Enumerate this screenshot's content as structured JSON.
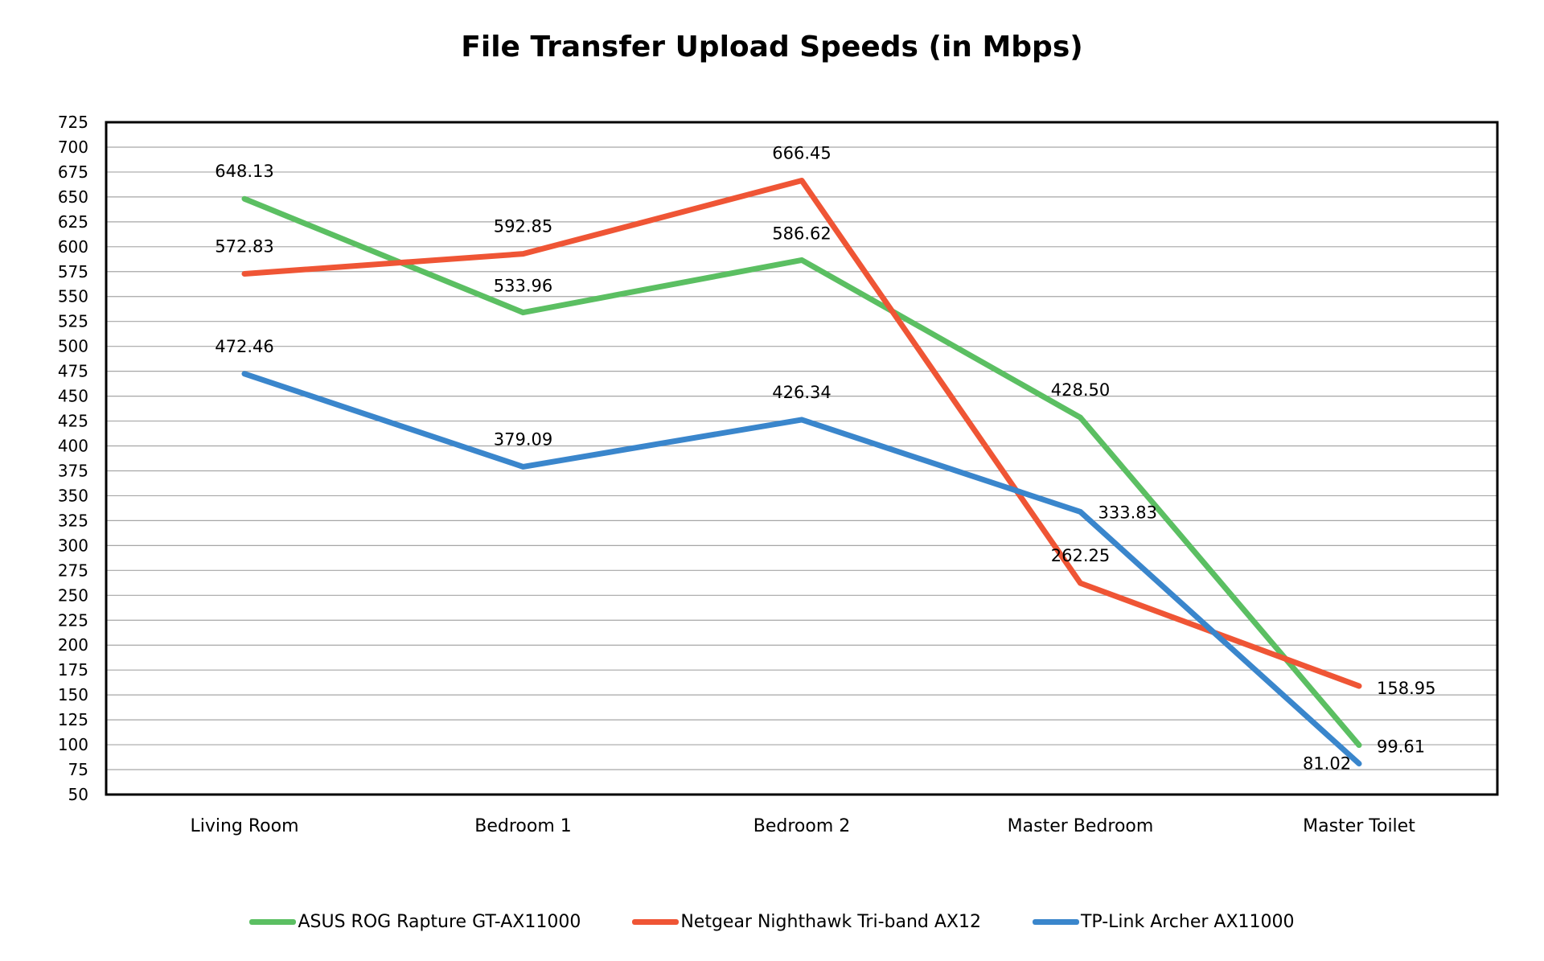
{
  "chart_data": {
    "type": "line",
    "title": "File Transfer Upload Speeds (in Mbps)",
    "xlabel": "",
    "ylabel": "",
    "categories": [
      "Living Room",
      "Bedroom 1",
      "Bedroom 2",
      "Master Bedroom",
      "Master Toilet"
    ],
    "ylim": [
      50,
      725
    ],
    "yticks": [
      50,
      75,
      100,
      125,
      150,
      175,
      200,
      225,
      250,
      275,
      300,
      325,
      350,
      375,
      400,
      425,
      450,
      475,
      500,
      525,
      550,
      575,
      600,
      625,
      650,
      675,
      700,
      725
    ],
    "grid": true,
    "legend_position": "bottom",
    "series": [
      {
        "name": "ASUS ROG Rapture GT-AX11000",
        "color": "#5BBF62",
        "values": [
          648.13,
          533.96,
          586.62,
          428.5,
          99.61
        ],
        "labels": [
          "648.13",
          "533.96",
          "586.62",
          "428.50",
          "99.61"
        ]
      },
      {
        "name": "Netgear Nighthawk Tri-band AX12",
        "color": "#EF5535",
        "values": [
          572.83,
          592.85,
          666.45,
          262.25,
          158.95
        ],
        "labels": [
          "572.83",
          "592.85",
          "666.45",
          "262.25",
          "158.95"
        ]
      },
      {
        "name": "TP-Link Archer AX11000",
        "color": "#3A86CC",
        "values": [
          472.46,
          379.09,
          426.34,
          333.83,
          81.02
        ],
        "labels": [
          "472.46",
          "379.09",
          "426.34",
          "333.83",
          "81.02"
        ]
      }
    ]
  }
}
